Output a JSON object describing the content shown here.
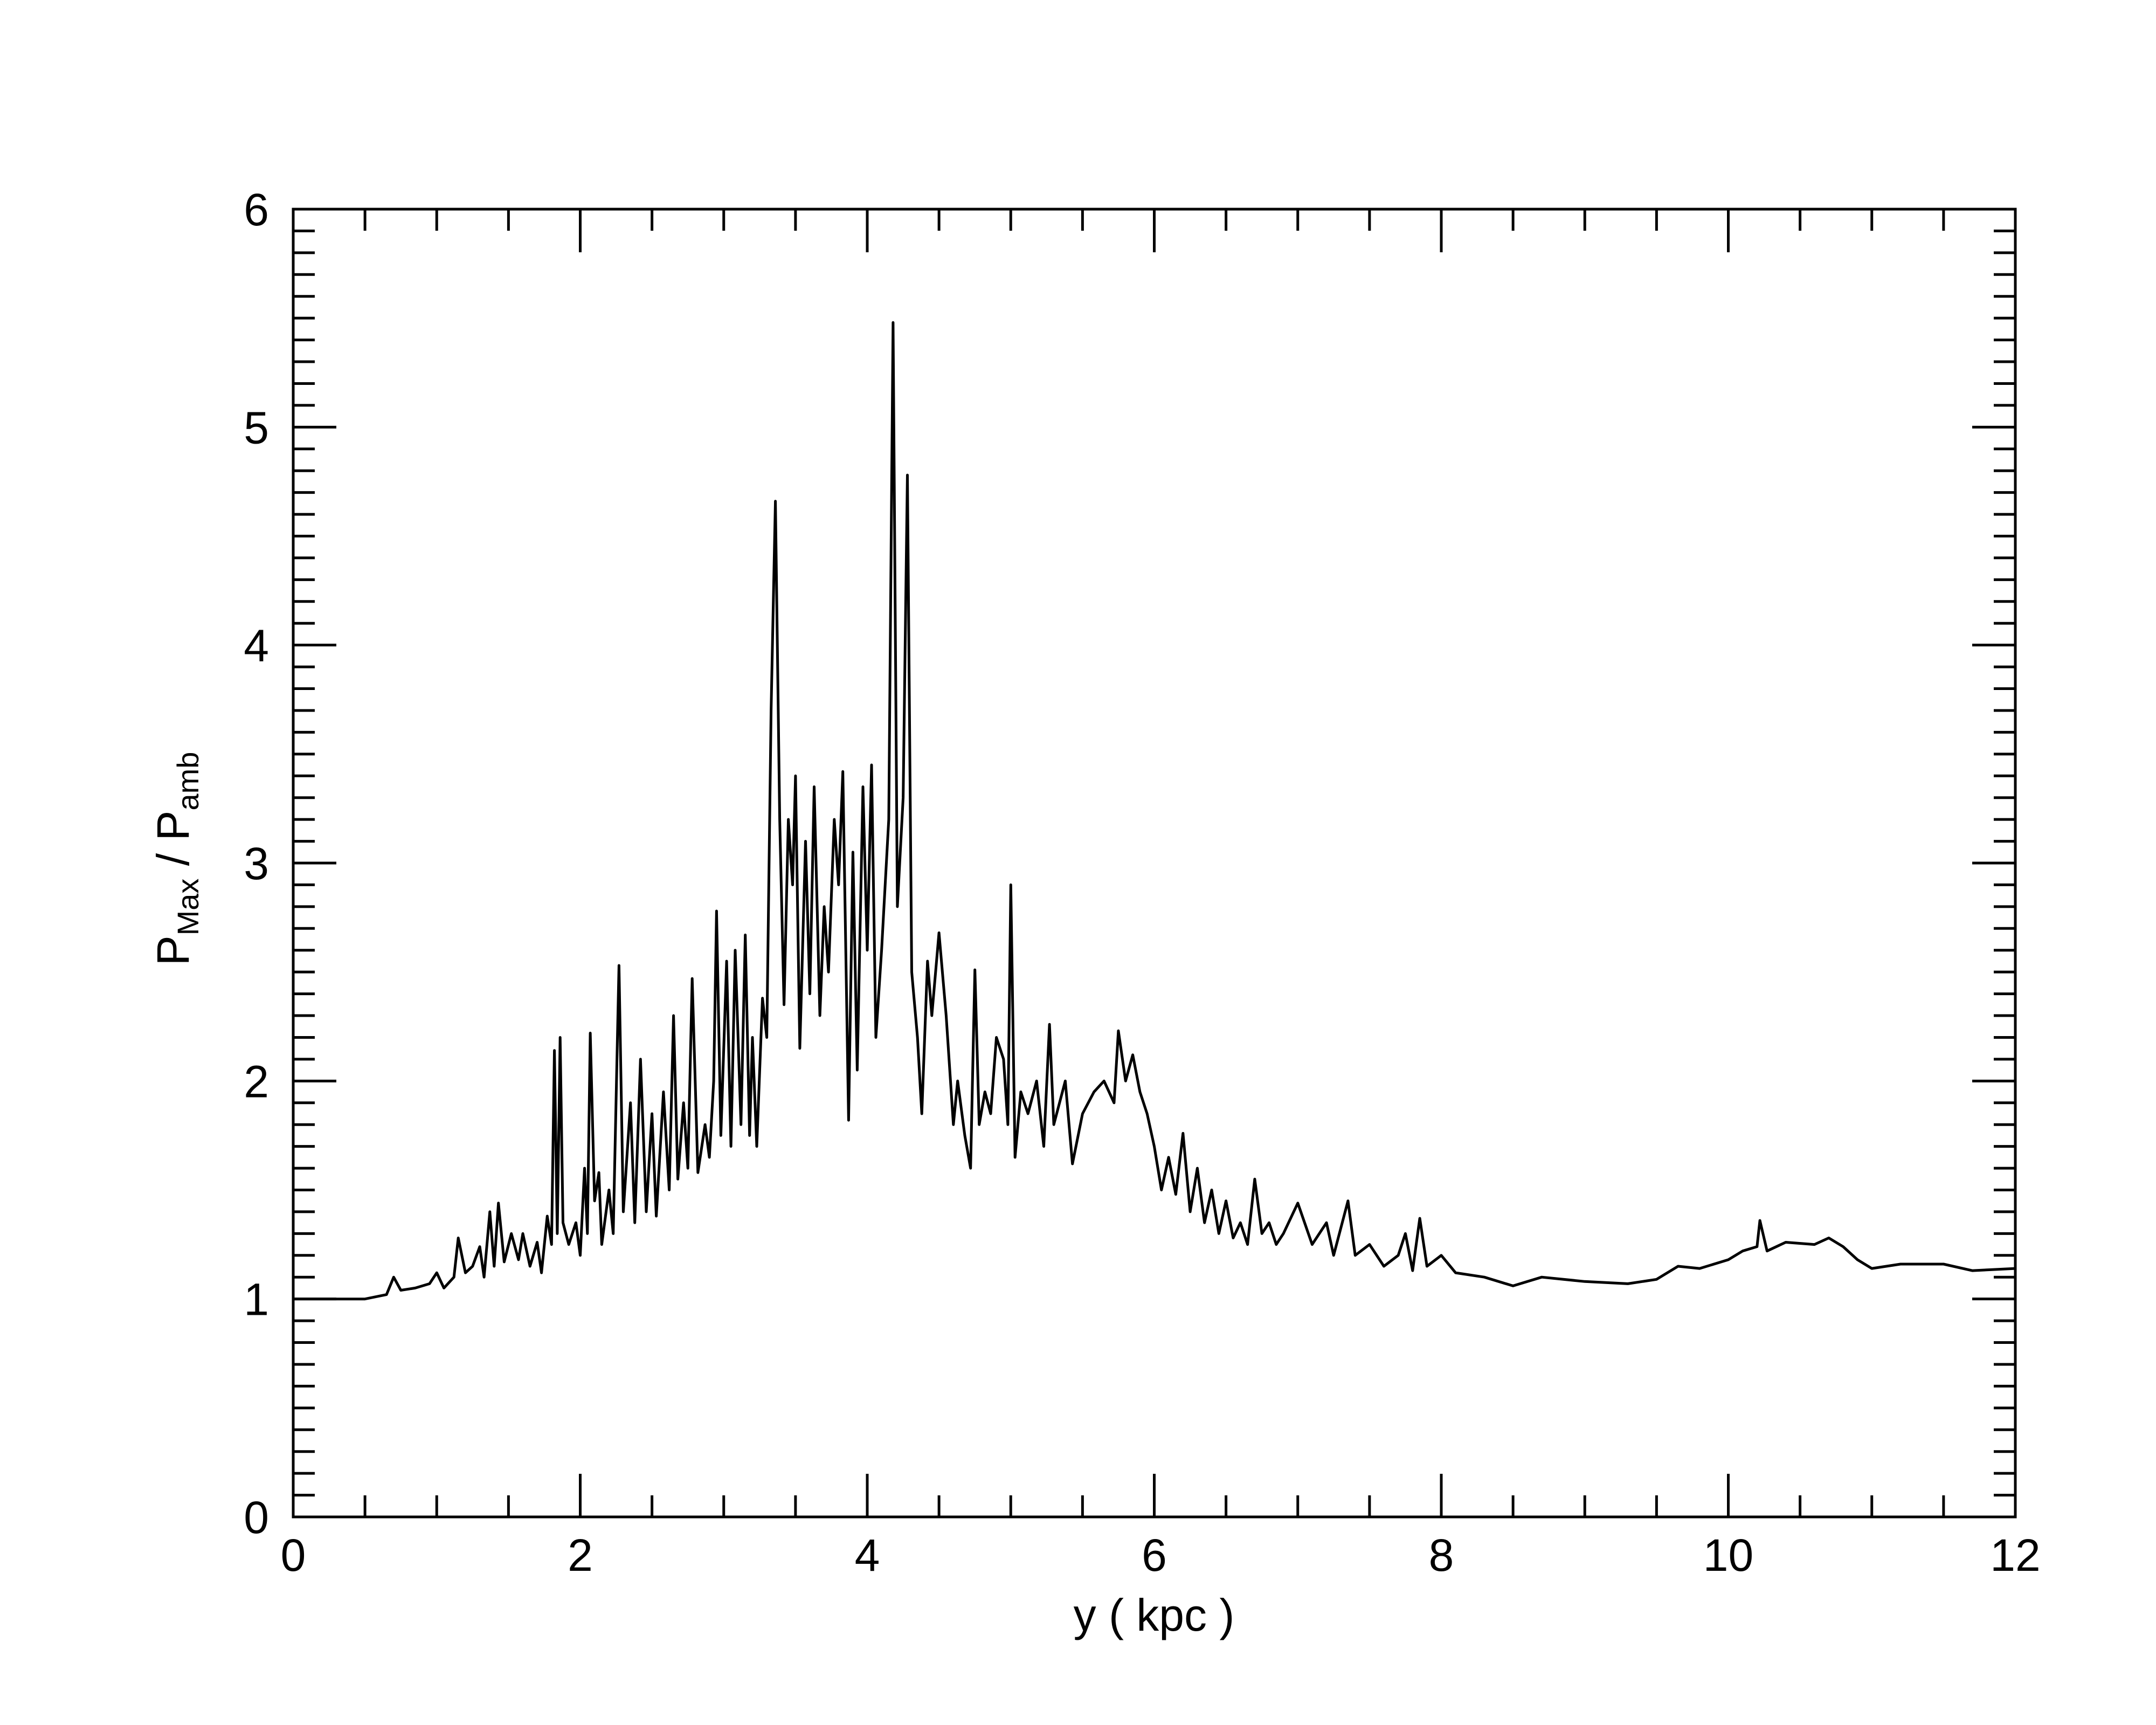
{
  "chart_data": {
    "type": "line",
    "xlabel": "y ( kpc )",
    "ylabel": [
      "P",
      "Max",
      " / P",
      "amb"
    ],
    "color": "#000000",
    "xlim": [
      0,
      12
    ],
    "xticks": [
      0,
      2,
      4,
      6,
      8,
      10,
      12
    ],
    "xminorticks": [
      0.5,
      1,
      1.5,
      2.5,
      3,
      3.5,
      4.5,
      5,
      5.5,
      6.5,
      7,
      7.5,
      8.5,
      9,
      9.5,
      10.5,
      11,
      11.5
    ],
    "ylim": [
      0,
      6
    ],
    "yticks": [
      0,
      1,
      2,
      3,
      4,
      5,
      6
    ],
    "yminorticks": [
      0.1,
      0.2,
      0.3,
      0.4,
      0.5,
      0.6,
      0.7,
      0.8,
      0.9,
      1.1,
      1.2,
      1.3,
      1.4,
      1.5,
      1.6,
      1.7,
      1.8,
      1.9,
      2.1,
      2.2,
      2.3,
      2.4,
      2.5,
      2.6,
      2.7,
      2.8,
      2.9,
      3.1,
      3.2,
      3.3,
      3.4,
      3.5,
      3.6,
      3.7,
      3.8,
      3.9,
      4.1,
      4.2,
      4.3,
      4.4,
      4.5,
      4.6,
      4.7,
      4.8,
      4.9,
      5.1,
      5.2,
      5.3,
      5.4,
      5.5,
      5.6,
      5.7,
      5.8,
      5.9
    ],
    "x": [
      0,
      0.3,
      0.5,
      0.65,
      0.7,
      0.75,
      0.85,
      0.95,
      1.0,
      1.05,
      1.12,
      1.15,
      1.2,
      1.25,
      1.3,
      1.33,
      1.37,
      1.4,
      1.43,
      1.47,
      1.52,
      1.57,
      1.6,
      1.65,
      1.7,
      1.73,
      1.77,
      1.8,
      1.82,
      1.84,
      1.86,
      1.88,
      1.92,
      1.97,
      2.0,
      2.03,
      2.05,
      2.07,
      2.1,
      2.13,
      2.15,
      2.2,
      2.23,
      2.27,
      2.3,
      2.35,
      2.38,
      2.42,
      2.46,
      2.5,
      2.53,
      2.58,
      2.62,
      2.65,
      2.68,
      2.72,
      2.75,
      2.78,
      2.82,
      2.87,
      2.9,
      2.93,
      2.95,
      2.98,
      3.02,
      3.05,
      3.08,
      3.12,
      3.15,
      3.18,
      3.2,
      3.23,
      3.27,
      3.3,
      3.33,
      3.36,
      3.39,
      3.42,
      3.45,
      3.48,
      3.5,
      3.53,
      3.57,
      3.6,
      3.63,
      3.67,
      3.7,
      3.73,
      3.77,
      3.8,
      3.83,
      3.87,
      3.9,
      3.93,
      3.97,
      4.0,
      4.03,
      4.06,
      4.1,
      4.15,
      4.18,
      4.21,
      4.25,
      4.28,
      4.31,
      4.35,
      4.38,
      4.42,
      4.45,
      4.5,
      4.55,
      4.6,
      4.63,
      4.68,
      4.72,
      4.75,
      4.78,
      4.82,
      4.86,
      4.9,
      4.95,
      4.98,
      5.0,
      5.03,
      5.07,
      5.12,
      5.18,
      5.23,
      5.27,
      5.3,
      5.38,
      5.43,
      5.5,
      5.58,
      5.65,
      5.72,
      5.75,
      5.8,
      5.85,
      5.9,
      5.95,
      6.0,
      6.05,
      6.1,
      6.15,
      6.2,
      6.25,
      6.3,
      6.35,
      6.4,
      6.45,
      6.5,
      6.55,
      6.6,
      6.65,
      6.7,
      6.75,
      6.8,
      6.85,
      6.9,
      7.0,
      7.1,
      7.2,
      7.25,
      7.35,
      7.4,
      7.5,
      7.6,
      7.7,
      7.75,
      7.8,
      7.85,
      7.9,
      8.0,
      8.1,
      8.3,
      8.5,
      8.7,
      9.0,
      9.3,
      9.5,
      9.65,
      9.8,
      10.0,
      10.1,
      10.2,
      10.22,
      10.27,
      10.4,
      10.6,
      10.7,
      10.8,
      10.9,
      11.0,
      11.2,
      11.5,
      11.7,
      12
    ],
    "values": [
      1.0,
      1.0,
      1.0,
      1.02,
      1.1,
      1.04,
      1.05,
      1.07,
      1.12,
      1.05,
      1.1,
      1.28,
      1.12,
      1.15,
      1.24,
      1.1,
      1.4,
      1.15,
      1.44,
      1.17,
      1.3,
      1.18,
      1.3,
      1.15,
      1.26,
      1.12,
      1.38,
      1.25,
      2.14,
      1.3,
      2.2,
      1.35,
      1.25,
      1.35,
      1.2,
      1.6,
      1.3,
      2.22,
      1.45,
      1.58,
      1.25,
      1.5,
      1.3,
      2.53,
      1.4,
      1.9,
      1.35,
      2.1,
      1.4,
      1.85,
      1.38,
      1.95,
      1.5,
      2.3,
      1.55,
      1.9,
      1.6,
      2.47,
      1.58,
      1.8,
      1.65,
      2.0,
      2.78,
      1.75,
      2.55,
      1.7,
      2.6,
      1.8,
      2.67,
      1.75,
      2.2,
      1.7,
      2.38,
      2.2,
      3.7,
      4.66,
      3.2,
      2.35,
      3.2,
      2.9,
      3.4,
      2.15,
      3.1,
      2.4,
      3.35,
      2.3,
      2.8,
      2.5,
      3.2,
      2.9,
      3.42,
      1.82,
      3.05,
      2.05,
      3.35,
      2.6,
      3.45,
      2.2,
      2.6,
      3.2,
      5.48,
      2.8,
      3.3,
      4.78,
      2.5,
      2.2,
      1.85,
      2.55,
      2.3,
      2.68,
      2.3,
      1.8,
      2.0,
      1.75,
      1.6,
      2.51,
      1.8,
      1.95,
      1.85,
      2.2,
      2.1,
      1.8,
      2.9,
      1.65,
      1.95,
      1.85,
      2.0,
      1.7,
      2.26,
      1.8,
      2.0,
      1.62,
      1.85,
      1.95,
      2.0,
      1.9,
      2.23,
      2.0,
      2.12,
      1.95,
      1.85,
      1.7,
      1.5,
      1.65,
      1.48,
      1.76,
      1.4,
      1.6,
      1.35,
      1.5,
      1.3,
      1.45,
      1.28,
      1.35,
      1.25,
      1.55,
      1.3,
      1.35,
      1.25,
      1.3,
      1.44,
      1.25,
      1.35,
      1.2,
      1.45,
      1.2,
      1.25,
      1.15,
      1.2,
      1.3,
      1.13,
      1.37,
      1.15,
      1.2,
      1.12,
      1.1,
      1.06,
      1.1,
      1.08,
      1.07,
      1.09,
      1.15,
      1.14,
      1.18,
      1.22,
      1.24,
      1.36,
      1.22,
      1.26,
      1.25,
      1.28,
      1.24,
      1.18,
      1.14,
      1.16,
      1.16,
      1.13,
      1.14
    ]
  }
}
